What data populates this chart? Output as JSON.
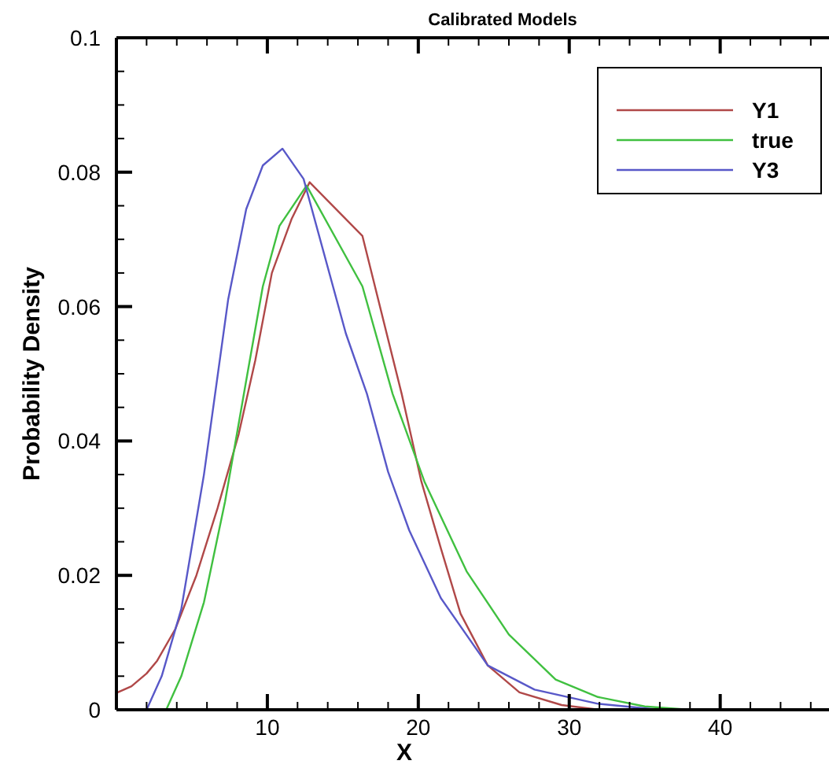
{
  "chart_data": {
    "type": "line",
    "title": "Calibrated Models",
    "xlabel": "X",
    "ylabel": "Probability Density",
    "xlim": [
      0,
      47
    ],
    "ylim": [
      0,
      0.1
    ],
    "xticks": [
      {
        "value": 2,
        "label": null
      },
      {
        "value": 4,
        "label": null
      },
      {
        "value": 6,
        "label": null
      },
      {
        "value": 8,
        "label": null
      },
      10,
      {
        "value": 12,
        "label": null
      },
      {
        "value": 14,
        "label": null
      },
      {
        "value": 16,
        "label": null
      },
      {
        "value": 18,
        "label": null
      },
      20,
      {
        "value": 22,
        "label": null
      },
      {
        "value": 24,
        "label": null
      },
      {
        "value": 26,
        "label": null
      },
      {
        "value": 28,
        "label": null
      },
      30,
      {
        "value": 32,
        "label": null
      },
      {
        "value": 34,
        "label": null
      },
      {
        "value": 36,
        "label": null
      },
      {
        "value": 38,
        "label": null
      },
      40,
      {
        "value": 42,
        "label": null
      },
      {
        "value": 44,
        "label": null
      },
      {
        "value": 46,
        "label": null
      }
    ],
    "yticks": [
      0,
      {
        "value": 0.005,
        "label": null
      },
      {
        "value": 0.01,
        "label": null
      },
      {
        "value": 0.015,
        "label": null
      },
      0.02,
      {
        "value": 0.025,
        "label": null
      },
      {
        "value": 0.03,
        "label": null
      },
      {
        "value": 0.035,
        "label": null
      },
      0.04,
      {
        "value": 0.045,
        "label": null
      },
      {
        "value": 0.05,
        "label": null
      },
      {
        "value": 0.055,
        "label": null
      },
      0.06,
      {
        "value": 0.065,
        "label": null
      },
      {
        "value": 0.07,
        "label": null
      },
      {
        "value": 0.075,
        "label": null
      },
      0.08,
      {
        "value": 0.085,
        "label": null
      },
      {
        "value": 0.09,
        "label": null
      },
      {
        "value": 0.095,
        "label": null
      },
      0.1
    ],
    "grid": false,
    "legend": "top right",
    "marker": "none",
    "line_style": "solid",
    "series": [
      {
        "name": "Y1",
        "color": "#b04848",
        "x": [
          0,
          1,
          2,
          2.7,
          3.9,
          5.3,
          6.7,
          8.1,
          9.2,
          10.3,
          11.6,
          12.8,
          16.3,
          18.9,
          20.2,
          21.5,
          22.8,
          24.6,
          26.7,
          29.5,
          32
        ],
        "values": [
          0.0025,
          0.0035,
          0.0054,
          0.0073,
          0.012,
          0.02,
          0.03,
          0.041,
          0.052,
          0.065,
          0.073,
          0.0785,
          0.0705,
          0.047,
          0.034,
          0.024,
          0.0143,
          0.0066,
          0.0026,
          0.0007,
          0
        ]
      },
      {
        "name": "true",
        "color": "#40c040",
        "x": [
          3.3,
          4.3,
          5.8,
          7.2,
          8.6,
          9.7,
          10.8,
          12.6,
          16.3,
          18.3,
          20.4,
          23.2,
          26,
          29.1,
          31.9,
          35,
          38
        ],
        "values": [
          0,
          0.005,
          0.016,
          0.031,
          0.049,
          0.063,
          0.072,
          0.078,
          0.063,
          0.047,
          0.034,
          0.0206,
          0.0112,
          0.0045,
          0.0019,
          0.0005,
          0
        ]
      },
      {
        "name": "Y3",
        "color": "#5858c8",
        "x": [
          2,
          3,
          4.3,
          5.8,
          7.4,
          8.6,
          9.7,
          11,
          12.4,
          15.2,
          16.6,
          18,
          19.4,
          21.5,
          24.6,
          27.7,
          31.9,
          36
        ],
        "values": [
          0,
          0.005,
          0.015,
          0.035,
          0.061,
          0.0745,
          0.081,
          0.0835,
          0.079,
          0.056,
          0.047,
          0.0354,
          0.0267,
          0.0166,
          0.0066,
          0.003,
          0.0009,
          0
        ]
      }
    ]
  }
}
